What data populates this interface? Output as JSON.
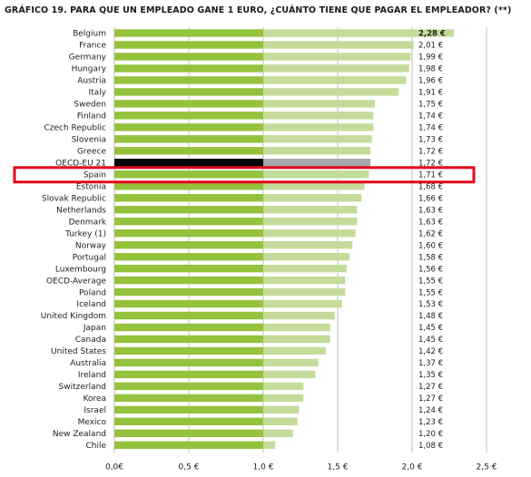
{
  "title": "GRÁFICO 19. PARA QUE UN EMPLEADO GANE 1 EURO, ¿CUÁNTO TIENE QUE PAGAR EL EMPLEADOR? (**)",
  "colors": {
    "bar_left": "#94c23c",
    "bar_right": "#c4dc9a",
    "highlight_left": "#000000",
    "highlight_right": "#a6a6a6",
    "box": "#e3061a",
    "grid": "#bfbfbf"
  },
  "chart_data": {
    "type": "bar",
    "orientation": "horizontal",
    "title": "GRÁFICO 19. PARA QUE UN EMPLEADO GANE 1 EURO, ¿CUÁNTO TIENE QUE PAGAR EL EMPLEADOR? (**)",
    "xlim": [
      0,
      2.5
    ],
    "x_ticks": [
      0,
      0.5,
      1.0,
      1.5,
      2.0,
      2.5
    ],
    "x_tick_labels": [
      "0,0€",
      "0,5 €",
      "1,0 €",
      "1,5 €",
      "2,0 €",
      "2,5 €"
    ],
    "grid": "vertical",
    "split_at": 1.0,
    "highlighted_category": "Spain",
    "emphasized_category": "OECD-EU 21",
    "categories": [
      "Belgium",
      "France",
      "Germany",
      "Hungary",
      "Austria",
      "Italy",
      "Sweden",
      "Finland",
      "Czech Republic",
      "Slovenia",
      "Greece",
      "OECD-EU 21",
      "Spain",
      "Estonia",
      "Slovak Republic",
      "Netherlands",
      "Denmark",
      "Turkey  (1)",
      "Norway",
      "Portugal",
      "Luxembourg",
      "OECD-Average",
      "Poland",
      "Iceland",
      "United Kingdom",
      "Japan",
      "Canada",
      "United States",
      "Australia",
      "Ireland",
      "Switzerland",
      "Korea",
      "Israel",
      "Mexico",
      "New Zealand",
      "Chile"
    ],
    "values": [
      2.28,
      2.01,
      1.99,
      1.98,
      1.96,
      1.91,
      1.75,
      1.74,
      1.74,
      1.73,
      1.72,
      1.72,
      1.71,
      1.68,
      1.66,
      1.63,
      1.63,
      1.62,
      1.6,
      1.58,
      1.56,
      1.55,
      1.55,
      1.53,
      1.48,
      1.45,
      1.45,
      1.42,
      1.37,
      1.35,
      1.27,
      1.27,
      1.24,
      1.23,
      1.2,
      1.08
    ],
    "value_labels": [
      "2,28 €",
      "2,01 €",
      "1,99 €",
      "1,98 €",
      "1,96 €",
      "1,91 €",
      "1,75 €",
      "1,74 €",
      "1,74 €",
      "1,73 €",
      "1,72 €",
      "1,72 €",
      "1,71 €",
      "1,68 €",
      "1,66 €",
      "1,63 €",
      "1,63 €",
      "1,62 €",
      "1,60 €",
      "1,58 €",
      "1,56 €",
      "1,55 €",
      "1,55 €",
      "1,53 €",
      "1,48 €",
      "1,45 €",
      "1,45 €",
      "1,42 €",
      "1,37 €",
      "1,35 €",
      "1,27 €",
      "1,27 €",
      "1,24 €",
      "1,23 €",
      "1,20 €",
      "1,08 €"
    ]
  }
}
